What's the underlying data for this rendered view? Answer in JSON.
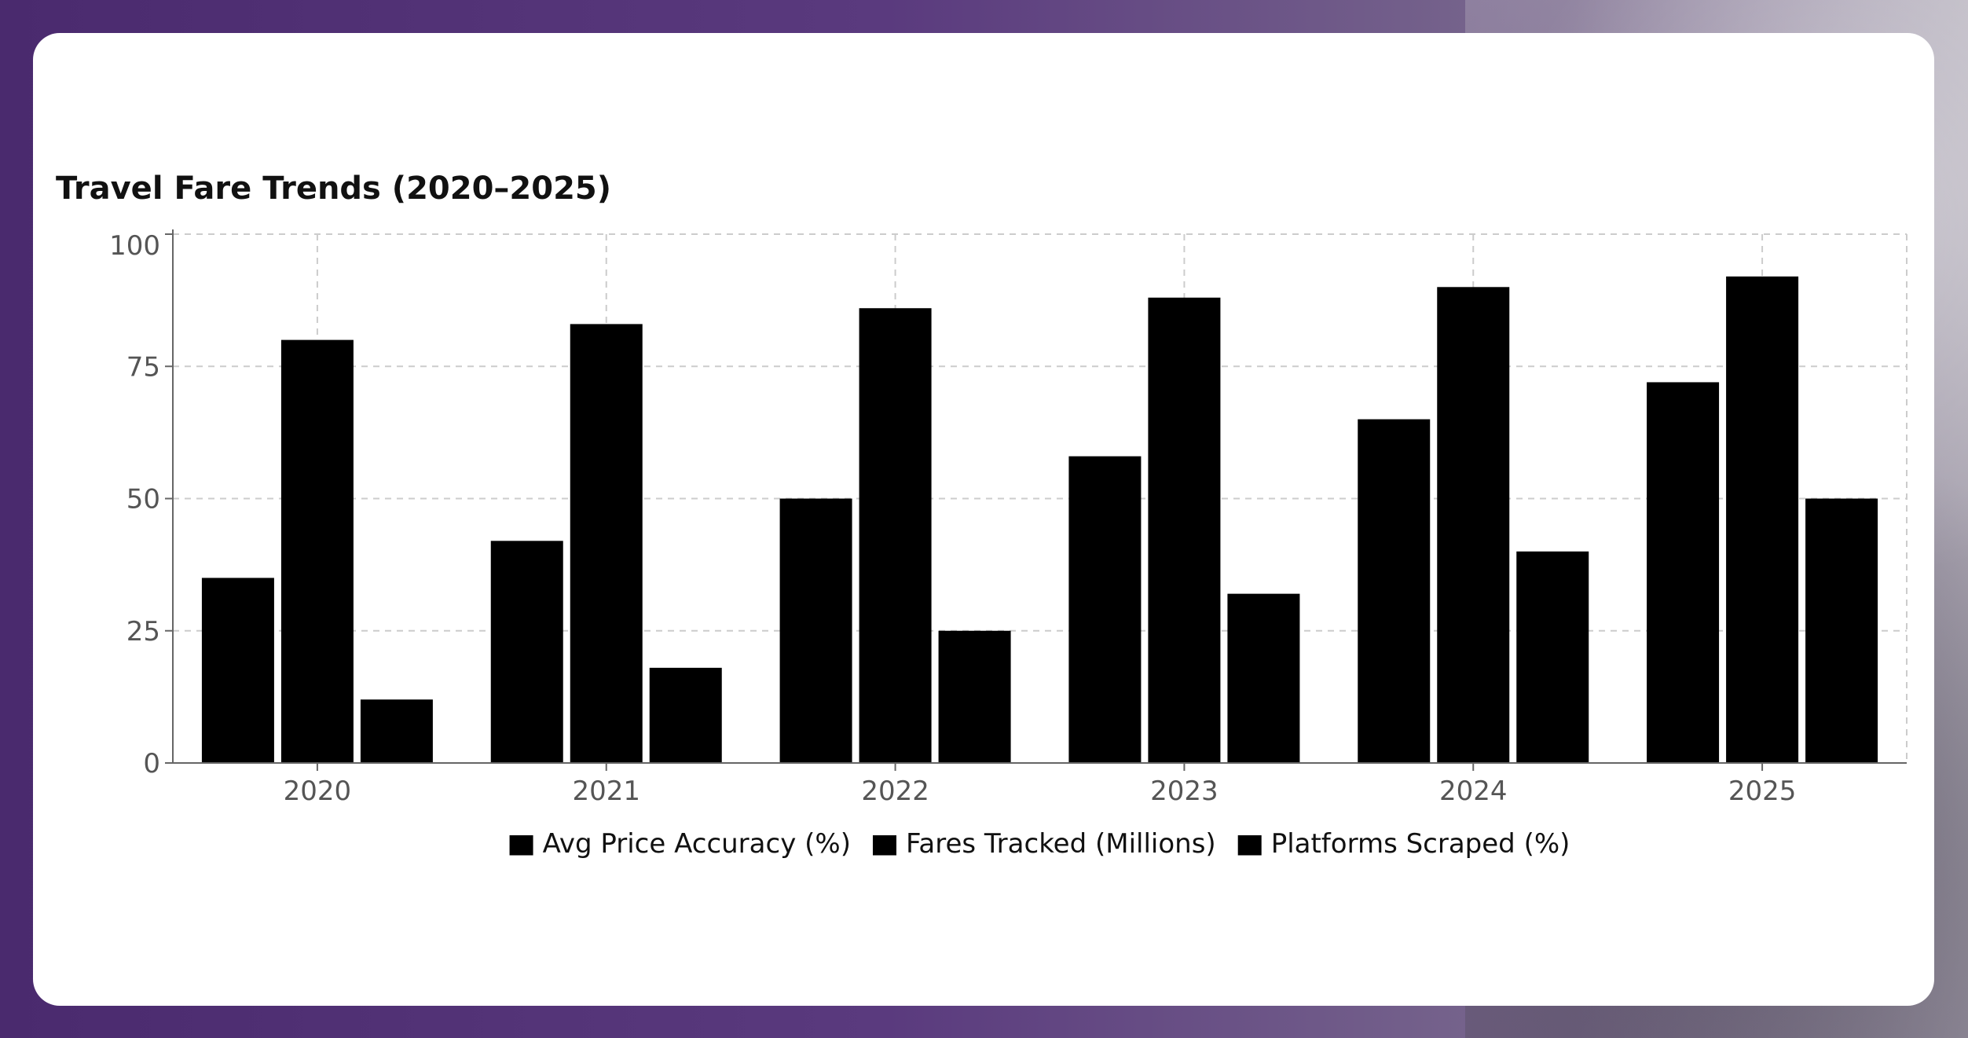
{
  "chart_data": {
    "type": "bar",
    "title": "Travel Fare Trends (2020–2025)",
    "categories": [
      "2020",
      "2021",
      "2022",
      "2023",
      "2024",
      "2025"
    ],
    "series": [
      {
        "name": "Avg Price Accuracy (%)",
        "values": [
          35,
          42,
          50,
          58,
          65,
          72
        ],
        "color": "#000000"
      },
      {
        "name": "Fares Tracked (Millions)",
        "values": [
          80,
          83,
          86,
          88,
          90,
          92
        ],
        "color": "#000000"
      },
      {
        "name": "Platforms Scraped (%)",
        "values": [
          12,
          18,
          25,
          32,
          40,
          50
        ],
        "color": "#000000"
      }
    ],
    "yticks": [
      0,
      25,
      50,
      75,
      100
    ],
    "ylim": [
      0,
      100
    ],
    "grid": true,
    "legend_position": "bottom"
  }
}
